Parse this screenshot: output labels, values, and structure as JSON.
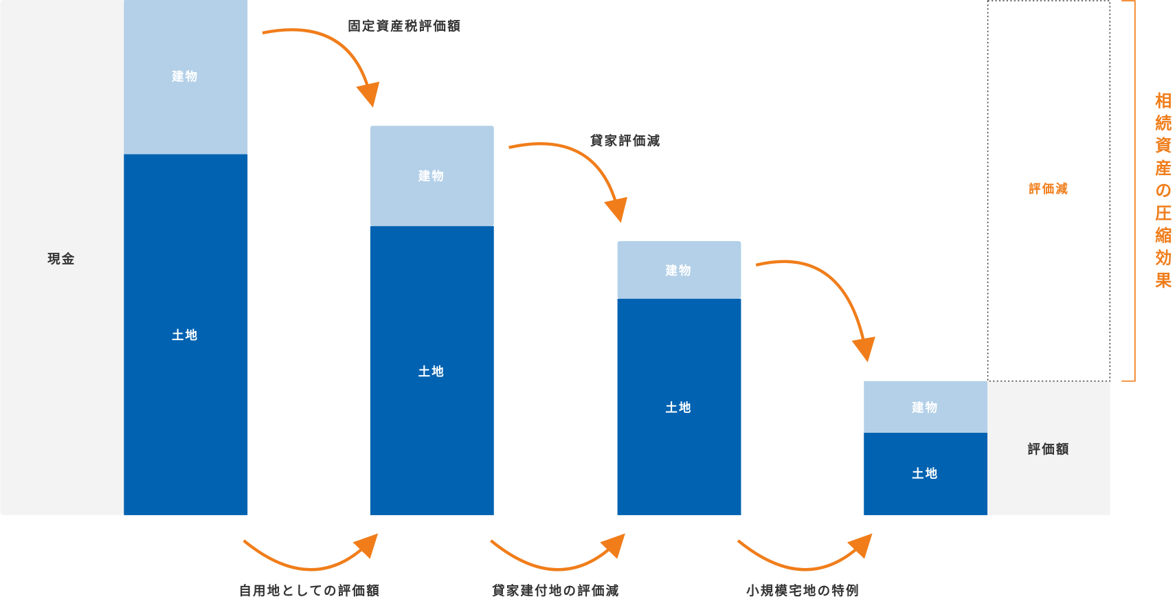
{
  "colors": {
    "land": "#0062b1",
    "building": "#b3d0e8",
    "cash": "#f3f3f3",
    "accent": "#f07d1a",
    "text": "#333333"
  },
  "bars": [
    {
      "name": "cash",
      "label": "現金"
    },
    {
      "building_label": "建物",
      "land_label": "土地"
    },
    {
      "building_label": "建物",
      "land_label": "土地"
    },
    {
      "building_label": "建物",
      "land_label": "土地"
    },
    {
      "building_label": "建物",
      "land_label": "土地"
    }
  ],
  "top_steps": [
    "固定資産税評価額",
    "貸家評価減"
  ],
  "bottom_steps": [
    "自用地としての評価額",
    "貸家建付地の評価減",
    "小規模宅地の特例"
  ],
  "result": {
    "reduction_label": "評価減",
    "value_label": "評価額"
  },
  "effect_label": [
    "相",
    "続",
    "資",
    "産",
    "の",
    "圧",
    "縮",
    "効",
    "果"
  ]
}
